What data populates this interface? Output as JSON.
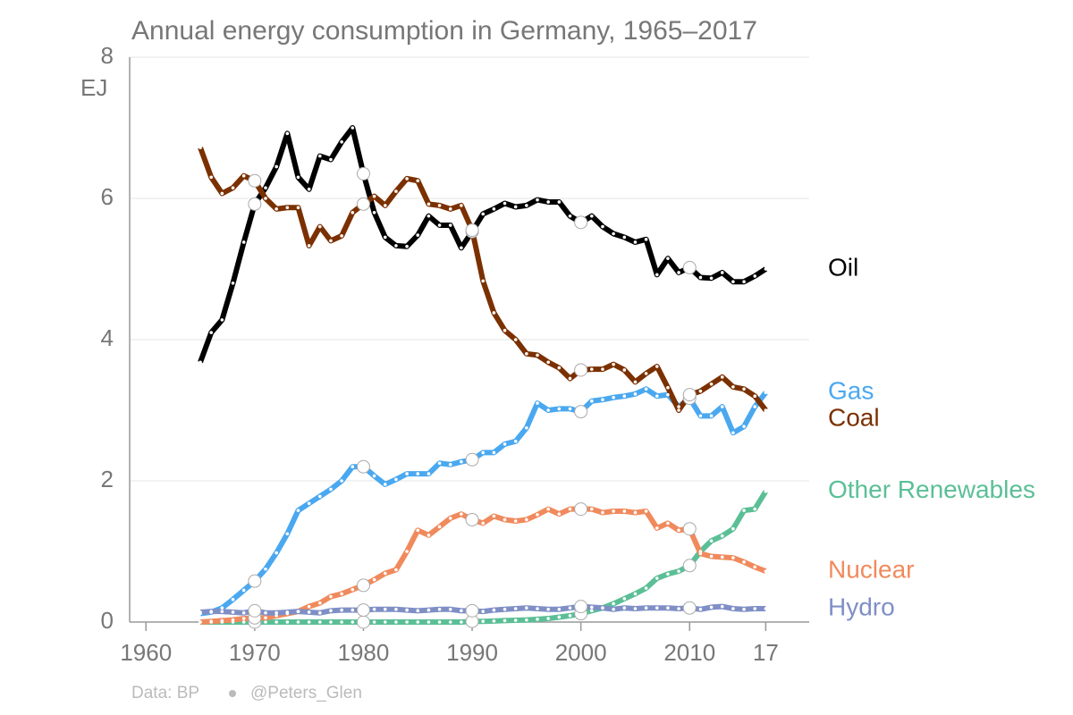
{
  "chart_data": {
    "type": "line",
    "title": "Annual energy consumption in Germany, 1965–2017",
    "y_label": "EJ",
    "source": "Data: BP",
    "credit": "@Peters_Glen",
    "x": [
      1965,
      1966,
      1967,
      1968,
      1969,
      1970,
      1971,
      1972,
      1973,
      1974,
      1975,
      1976,
      1977,
      1978,
      1979,
      1980,
      1981,
      1982,
      1983,
      1984,
      1985,
      1986,
      1987,
      1988,
      1989,
      1990,
      1991,
      1992,
      1993,
      1994,
      1995,
      1996,
      1997,
      1998,
      1999,
      2000,
      2001,
      2002,
      2003,
      2004,
      2005,
      2006,
      2007,
      2008,
      2009,
      2010,
      2011,
      2012,
      2013,
      2014,
      2015,
      2016,
      2017
    ],
    "xlim": [
      1958.5,
      2021
    ],
    "xticks": [
      1960,
      1970,
      1980,
      1990,
      2000,
      2010,
      {
        "value": 2017,
        "label": "17"
      }
    ],
    "ylim": [
      0,
      8
    ],
    "yticks": [
      0,
      2,
      4,
      6,
      8
    ],
    "grid": true,
    "series": [
      {
        "name": "Oil",
        "color": "#000000",
        "values": [
          3.68,
          4.1,
          4.28,
          4.8,
          5.38,
          5.92,
          6.15,
          6.45,
          6.92,
          6.3,
          6.13,
          6.6,
          6.55,
          6.8,
          7.0,
          6.35,
          5.8,
          5.45,
          5.33,
          5.32,
          5.48,
          5.75,
          5.62,
          5.62,
          5.3,
          5.53,
          5.78,
          5.85,
          5.93,
          5.88,
          5.9,
          5.98,
          5.95,
          5.95,
          5.75,
          5.66,
          5.75,
          5.6,
          5.5,
          5.45,
          5.38,
          5.42,
          4.92,
          5.15,
          4.95,
          5.02,
          4.88,
          4.87,
          4.95,
          4.82,
          4.82,
          4.9,
          5.0
        ]
      },
      {
        "name": "Gas",
        "color": "#4aa8f0",
        "values": [
          0.12,
          0.14,
          0.2,
          0.32,
          0.45,
          0.58,
          0.75,
          0.98,
          1.25,
          1.58,
          1.68,
          1.78,
          1.88,
          2.0,
          2.2,
          2.2,
          2.07,
          1.95,
          2.02,
          2.1,
          2.1,
          2.1,
          2.25,
          2.23,
          2.27,
          2.3,
          2.4,
          2.4,
          2.52,
          2.56,
          2.75,
          3.1,
          3.0,
          3.02,
          3.02,
          2.98,
          3.13,
          3.15,
          3.18,
          3.2,
          3.23,
          3.3,
          3.2,
          3.22,
          3.05,
          3.17,
          2.92,
          2.92,
          3.05,
          2.68,
          2.77,
          3.05,
          3.25
        ]
      },
      {
        "name": "Coal",
        "color": "#7b3000",
        "values": [
          6.72,
          6.3,
          6.07,
          6.15,
          6.32,
          6.25,
          6.0,
          5.85,
          5.87,
          5.87,
          5.33,
          5.6,
          5.4,
          5.47,
          5.8,
          5.92,
          6.03,
          5.9,
          6.1,
          6.28,
          6.25,
          5.92,
          5.9,
          5.85,
          5.9,
          5.55,
          4.83,
          4.38,
          4.13,
          4.0,
          3.8,
          3.78,
          3.68,
          3.6,
          3.45,
          3.57,
          3.58,
          3.58,
          3.65,
          3.57,
          3.4,
          3.52,
          3.62,
          3.32,
          3.0,
          3.22,
          3.27,
          3.37,
          3.47,
          3.33,
          3.3,
          3.2,
          3.0
        ]
      },
      {
        "name": "Other Renewables",
        "color": "#5bbf96",
        "values": [
          0,
          0,
          0,
          0,
          0,
          0,
          0,
          0,
          0,
          0,
          0,
          0,
          0,
          0,
          0,
          0,
          0,
          0,
          0,
          0,
          0,
          0,
          0,
          0,
          0,
          0.01,
          0.01,
          0.015,
          0.02,
          0.025,
          0.03,
          0.04,
          0.05,
          0.07,
          0.09,
          0.12,
          0.16,
          0.2,
          0.26,
          0.33,
          0.4,
          0.48,
          0.62,
          0.68,
          0.72,
          0.8,
          1.0,
          1.15,
          1.22,
          1.32,
          1.58,
          1.6,
          1.85
        ]
      },
      {
        "name": "Nuclear",
        "color": "#f08a5d",
        "values": [
          0,
          0.01,
          0.02,
          0.03,
          0.05,
          0.06,
          0.06,
          0.09,
          0.12,
          0.15,
          0.22,
          0.27,
          0.36,
          0.4,
          0.46,
          0.52,
          0.6,
          0.69,
          0.74,
          1.0,
          1.3,
          1.23,
          1.35,
          1.47,
          1.53,
          1.45,
          1.4,
          1.5,
          1.45,
          1.43,
          1.45,
          1.52,
          1.6,
          1.53,
          1.6,
          1.6,
          1.6,
          1.55,
          1.57,
          1.57,
          1.55,
          1.57,
          1.33,
          1.4,
          1.3,
          1.32,
          0.97,
          0.93,
          0.92,
          0.91,
          0.85,
          0.78,
          0.72
        ]
      },
      {
        "name": "Hydro",
        "color": "#7f8fc6",
        "values": [
          0.14,
          0.15,
          0.15,
          0.14,
          0.13,
          0.16,
          0.13,
          0.13,
          0.14,
          0.15,
          0.14,
          0.13,
          0.16,
          0.17,
          0.17,
          0.17,
          0.18,
          0.18,
          0.18,
          0.17,
          0.16,
          0.17,
          0.18,
          0.18,
          0.16,
          0.16,
          0.15,
          0.17,
          0.18,
          0.19,
          0.2,
          0.19,
          0.18,
          0.18,
          0.2,
          0.22,
          0.21,
          0.2,
          0.18,
          0.2,
          0.19,
          0.2,
          0.2,
          0.2,
          0.19,
          0.2,
          0.18,
          0.21,
          0.22,
          0.19,
          0.18,
          0.19,
          0.19
        ]
      }
    ]
  }
}
